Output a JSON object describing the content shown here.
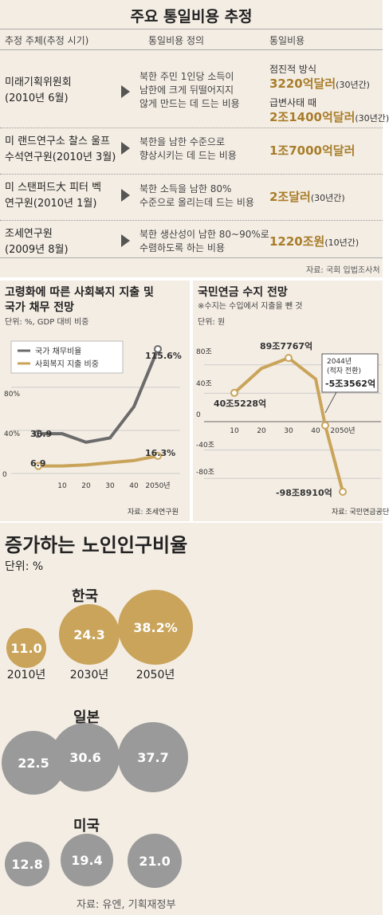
{
  "top_table": {
    "title": "주요 통일비용 추정",
    "headers": [
      "추정 주체(추정 시기)",
      "통일비용 정의",
      "통일비용"
    ],
    "rows": [
      {
        "org": "미래기획위원회\n(2010년 6월)",
        "definition": "북한 주민 1인당 소득이\n남한에 크게 뒤떨어지지\n않게 만드는 데 드는 비용",
        "costs": [
          {
            "label": "점진적 방식",
            "value": "3220억달러",
            "note": "(30년간)"
          },
          {
            "label": "급변사태 때",
            "value": "2조1400억달러",
            "note": "(30년간)"
          }
        ]
      },
      {
        "org": "미 랜드연구소 찰스 울프\n수석연구원(2010년 3월)",
        "definition": "북한을 남한 수준으로\n향상시키는 데 드는 비용",
        "costs": [
          {
            "label": "",
            "value": "1조7000억달러",
            "note": ""
          }
        ]
      },
      {
        "org": "미 스탠퍼드大 피터 벡\n연구원(2010년 1월)",
        "definition": "북한 소득을 남한 80%\n수준으로 올리는데 드는 비용",
        "costs": [
          {
            "label": "",
            "value": "2조달러",
            "note": "(30년간)"
          }
        ]
      },
      {
        "org": "조세연구원\n(2009년 8월)",
        "definition": "북한 생산성이 남한 80~90%로\n수렴하도록 하는 비용",
        "costs": [
          {
            "label": "",
            "value": "1220조원",
            "note": "(10년간)"
          }
        ]
      }
    ],
    "source": "자료: 국회 입법조사처"
  },
  "welfare_chart": {
    "title": "고령화에 따른 사회복지 지출 및\n국가 채무 전망",
    "unit": "단위: %, GDP 대비 비중",
    "source": "자료: 조세연구원",
    "annotations": [
      "36.9",
      "115.6%",
      "6.9",
      "16.3%"
    ]
  },
  "pension_chart": {
    "title": "국민연금 수지 전망",
    "note": "※수지는 수입에서 지출을 뺀 것",
    "unit": "단위: 원",
    "source": "자료: 국민연금공단",
    "annotations": [
      "40조5228억",
      "89조7767억",
      "2044년\n(적자 전환)",
      "-5조3562억",
      "-98조8910억"
    ]
  },
  "chart_data": [
    {
      "type": "line",
      "title": "고령화에 따른 사회복지 지출 및 국가 채무 전망",
      "x": [
        "",
        "10",
        "20",
        "30",
        "40",
        "2050년"
      ],
      "series": [
        {
          "name": "국가 채무비율",
          "values": [
            36.9,
            36.9,
            29,
            33,
            62,
            115.6
          ]
        },
        {
          "name": "사회복지 지출 비중",
          "values": [
            6.9,
            6.9,
            8,
            10,
            12,
            16.3
          ]
        }
      ],
      "ylim": [
        0,
        120
      ],
      "yticks": [
        "0",
        "40%",
        "80%"
      ],
      "colors": {
        "국가 채무비율": "#6b6b6b",
        "사회복지 지출 비중": "#c9a45a"
      },
      "legend": "top-left"
    },
    {
      "type": "line",
      "title": "국민연금 수지 전망",
      "x": [
        "10",
        "20",
        "30",
        "40",
        "2044",
        "2050년"
      ],
      "series": [
        {
          "name": "",
          "values": [
            40.5228,
            75,
            89.7767,
            60,
            -5.3562,
            -98.891
          ]
        }
      ],
      "ylim": [
        -100,
        100
      ],
      "yticks": [
        "80조",
        "40조",
        "0",
        "-40조",
        "-80조"
      ],
      "colors": {
        "line": "#c9a45a"
      }
    },
    {
      "type": "bubble",
      "title": "증가하는 노인인구비율",
      "unit": "단위: %",
      "categories": [
        "2010년",
        "2030년",
        "2050년"
      ],
      "series": [
        {
          "name": "한국",
          "values": [
            11.0,
            24.3,
            38.2
          ]
        },
        {
          "name": "일본",
          "values": [
            22.5,
            30.6,
            37.7
          ]
        },
        {
          "name": "미국",
          "values": [
            12.8,
            19.4,
            21.0
          ]
        }
      ],
      "source": "자료: 유엔, 기획재정부",
      "colors": {
        "한국": "#c9a45a",
        "일본": "#9a9a9a",
        "미국": "#9a9a9a"
      }
    }
  ],
  "elderly": {
    "title": "증가하는 노인인구비율",
    "unit": "단위: %",
    "korea": {
      "name": "한국",
      "labels": [
        "11.0",
        "24.3",
        "38.2%"
      ],
      "years": [
        "2010년",
        "2030년",
        "2050년"
      ]
    },
    "japan": {
      "name": "일본",
      "labels": [
        "22.5",
        "30.6",
        "37.7"
      ]
    },
    "usa": {
      "name": "미국",
      "labels": [
        "12.8",
        "19.4",
        "21.0"
      ]
    },
    "source": "자료: 유엔, 기획재정부"
  }
}
